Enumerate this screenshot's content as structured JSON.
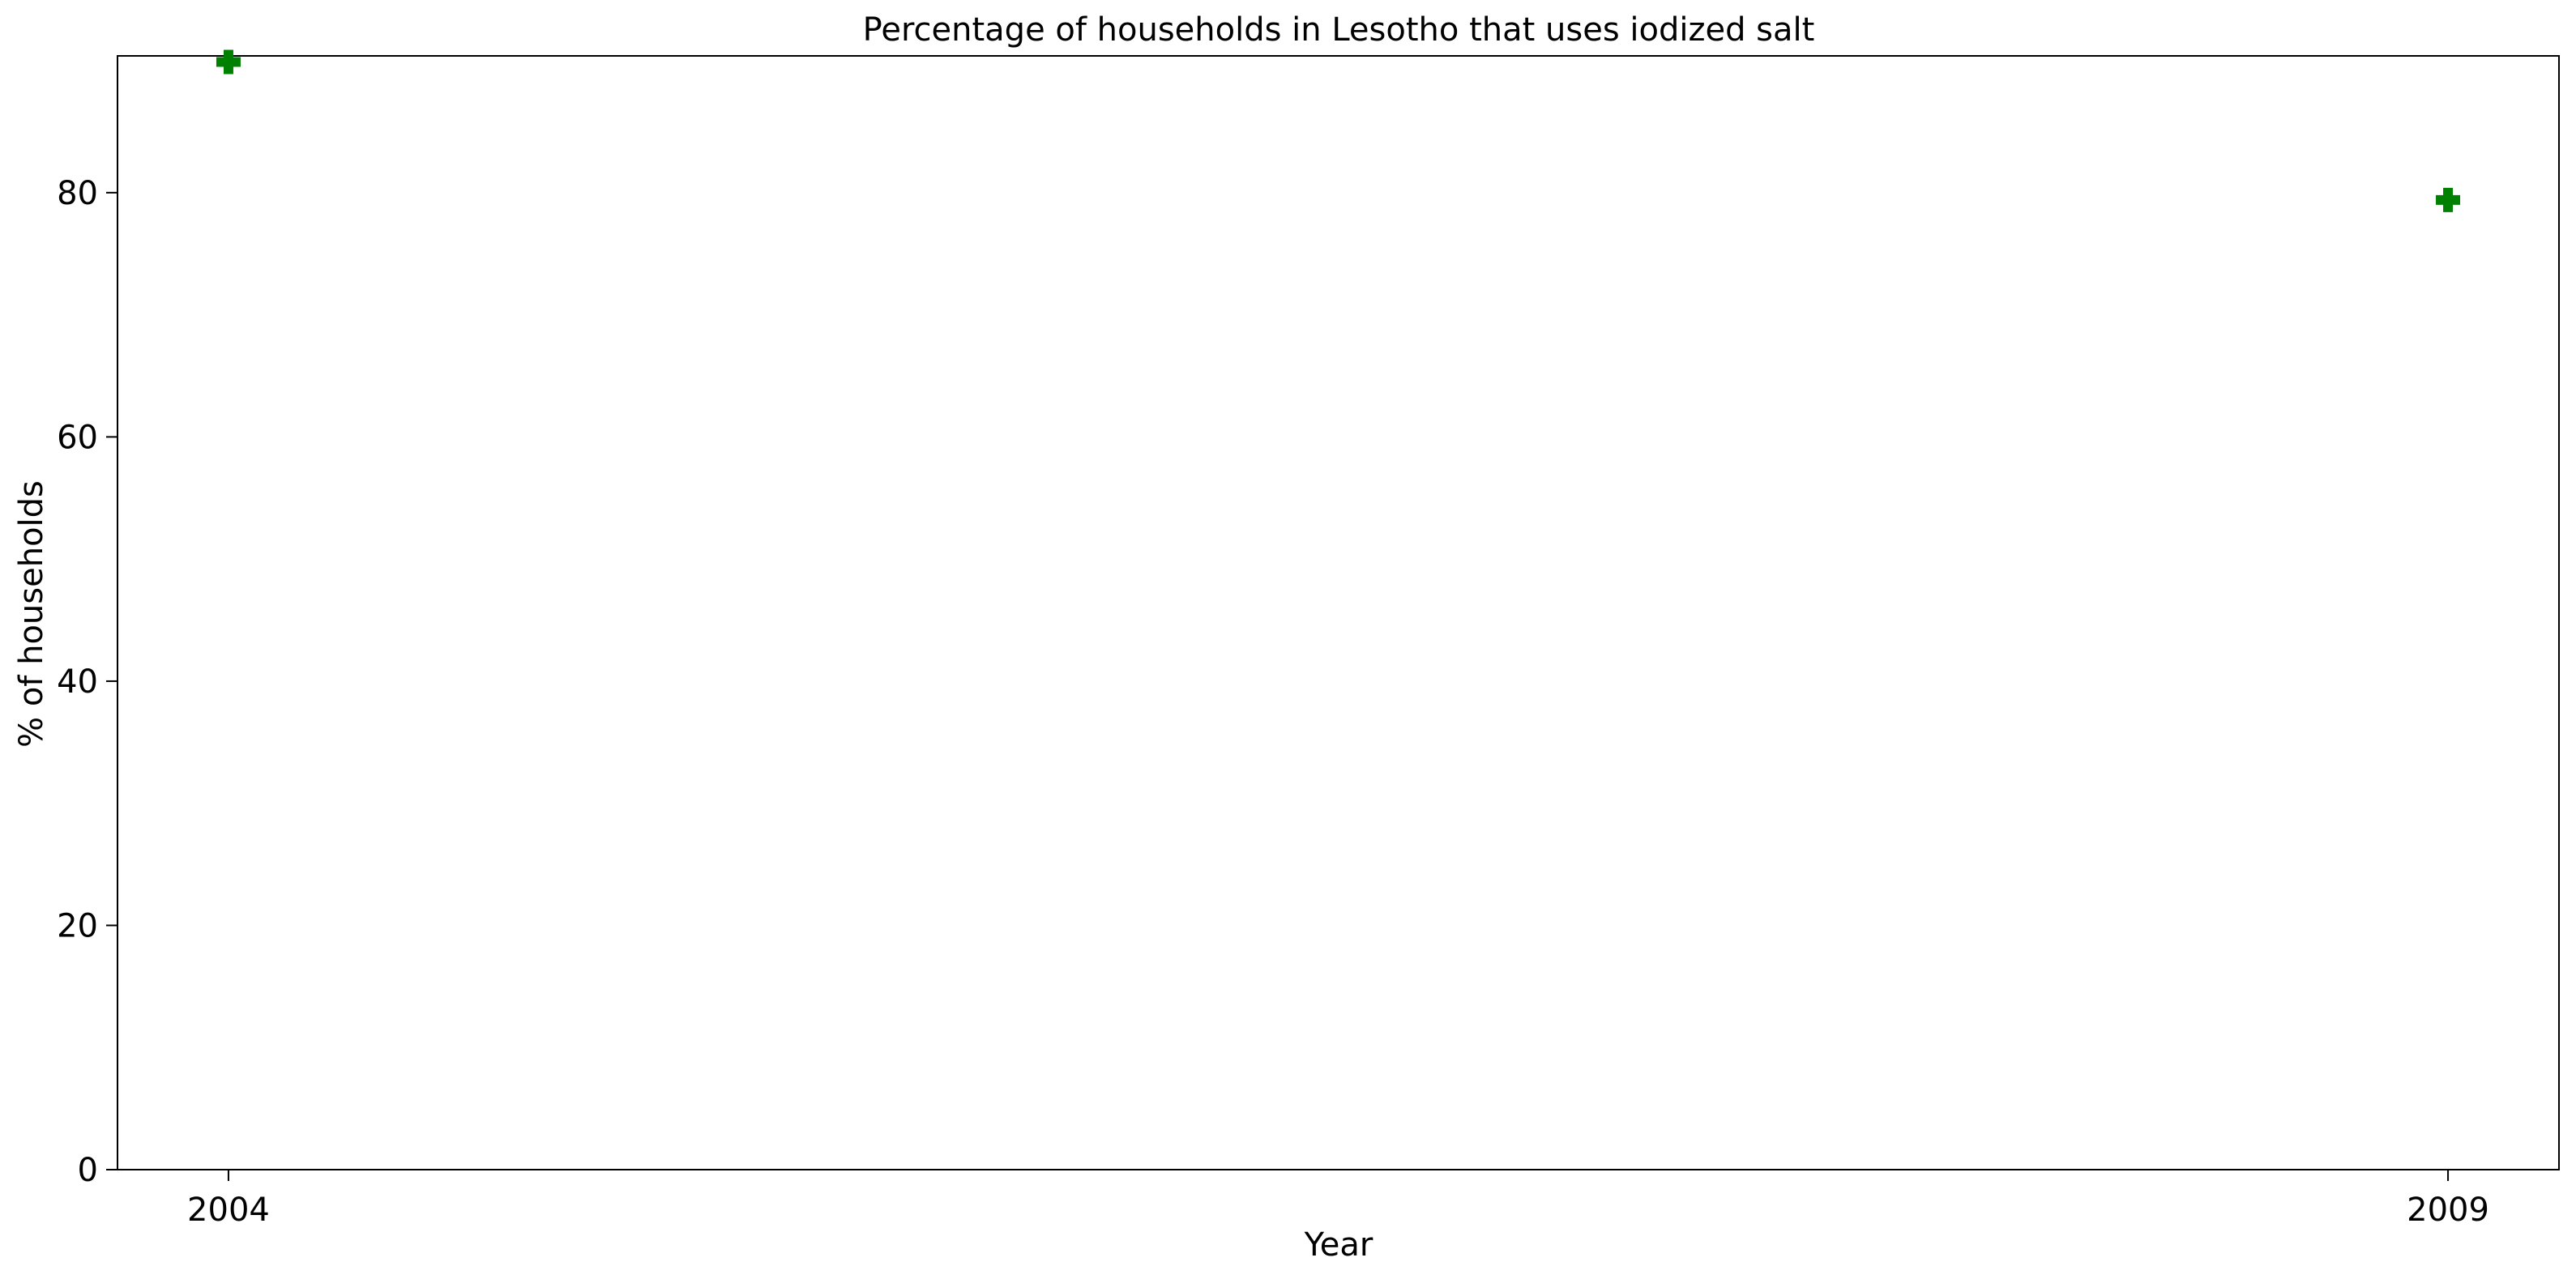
{
  "chart_data": {
    "type": "scatter",
    "title": "Percentage of households in Lesotho that uses iodized salt",
    "xlabel": "Year",
    "ylabel": "% of households",
    "x": [
      2004,
      2009
    ],
    "series": [
      {
        "values": [
          90.7,
          79.4
        ],
        "color": "#008000",
        "marker": "plus-filled"
      }
    ],
    "xticks": [
      "2004",
      "2009"
    ],
    "yticks": [
      0,
      20,
      40,
      60,
      80
    ],
    "ylim": [
      0,
      91.2
    ],
    "grid": false,
    "legend": "none"
  }
}
